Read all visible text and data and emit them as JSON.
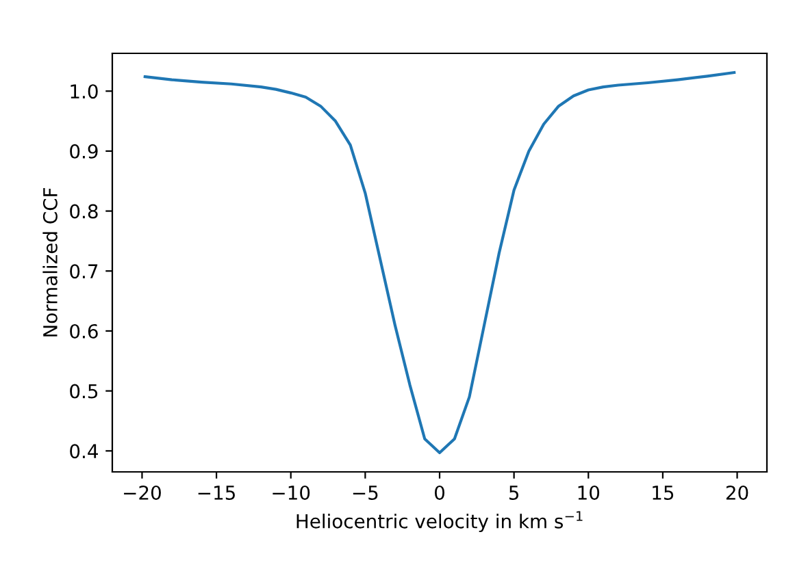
{
  "chart_data": {
    "type": "line",
    "xlabel": "Heliocentric velocity in km s$^{−1}$",
    "ylabel": "Normalized CCF",
    "x": [
      -19.8,
      -18,
      -16,
      -14,
      -12,
      -11,
      -10,
      -9,
      -8,
      -7,
      -6,
      -5,
      -4,
      -3,
      -2,
      -1,
      0,
      1,
      2,
      3,
      4,
      5,
      6,
      7,
      8,
      9,
      10,
      11,
      12,
      14,
      16,
      18,
      19.8
    ],
    "series": [
      {
        "color": "#1f77b4",
        "values": [
          1.024,
          1.019,
          1.015,
          1.012,
          1.007,
          1.003,
          0.997,
          0.99,
          0.975,
          0.95,
          0.91,
          0.83,
          0.72,
          0.61,
          0.51,
          0.42,
          0.397,
          0.42,
          0.49,
          0.61,
          0.73,
          0.835,
          0.9,
          0.945,
          0.975,
          0.992,
          1.002,
          1.007,
          1.01,
          1.014,
          1.019,
          1.025,
          1.031
        ]
      }
    ],
    "xlim": [
      -22,
      22
    ],
    "ylim": [
      0.365,
      1.063
    ],
    "xticks": [
      -20,
      -15,
      -10,
      -5,
      0,
      5,
      10,
      15,
      20
    ],
    "yticks": [
      0.4,
      0.5,
      0.6,
      0.7,
      0.8,
      0.9,
      {
        "value": 1,
        "label": "1.0"
      }
    ],
    "grid": false,
    "legend": false
  }
}
